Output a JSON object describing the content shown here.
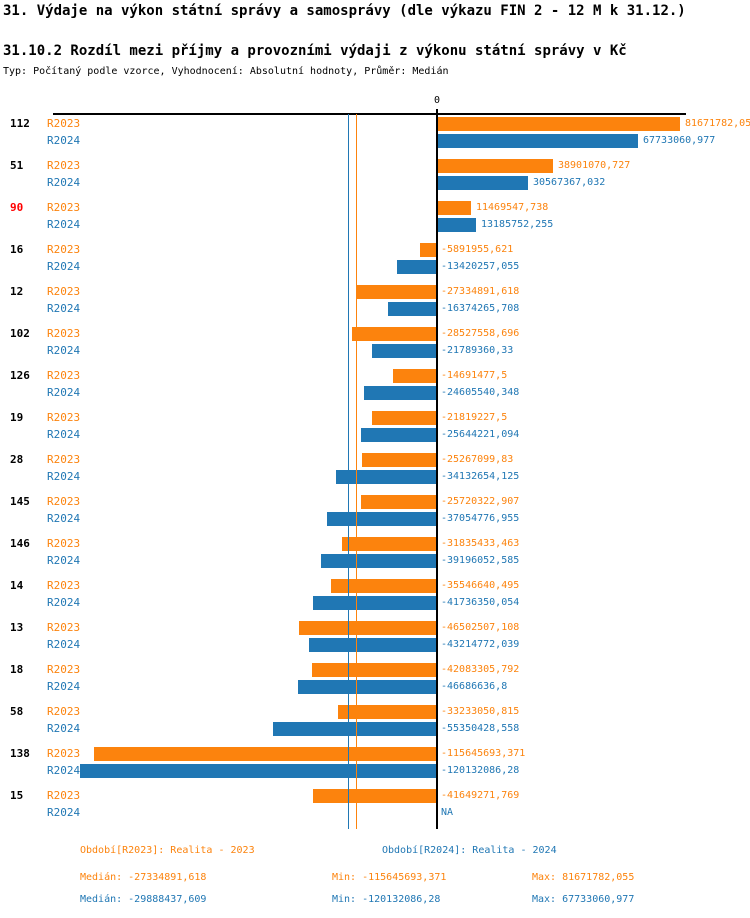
{
  "header": {
    "title": "31. Výdaje na výkon státní správy a samosprávy (dle výkazu FIN 2 - 12 M k 31.12.)",
    "subtitle": "31.10.2 Rozdíl mezi příjmy a provozními výdaji z výkonu státní správy v Kč",
    "meta": "Typ: Počítaný podle vzorce, Vyhodnocení: Absolutní hodnoty, Průměr: Medián"
  },
  "colors": {
    "r2023": "#FC830D",
    "r2024": "#2077B4",
    "category_default": "#000000",
    "category_highlight": "#FF0000",
    "axis": "#000000"
  },
  "axis": {
    "zero_label": "0"
  },
  "chart_data": {
    "type": "bar",
    "orientation": "horizontal",
    "unit": "Kč",
    "categories": [
      "112",
      "51",
      "90",
      "16",
      "12",
      "102",
      "126",
      "19",
      "28",
      "145",
      "146",
      "14",
      "13",
      "18",
      "58",
      "138",
      "15"
    ],
    "highlighted_categories": [
      "90"
    ],
    "series": [
      {
        "name": "R2023",
        "values": [
          81671782.05,
          38901070.727,
          11469547.738,
          -5891955.621,
          -27334891.618,
          -28527558.696,
          -14691477.5,
          -21819227.5,
          -25267099.83,
          -25720322.907,
          -31835433.463,
          -35546640.495,
          -46502507.108,
          -42083305.792,
          -33233050.815,
          -115645693.371,
          -41649271.769
        ],
        "labels": [
          "81671782,05",
          "38901070,727",
          "11469547,738",
          "-5891955,621",
          "-27334891,618",
          "-28527558,696",
          "-14691477,5",
          "-21819227,5",
          "-25267099,83",
          "-25720322,907",
          "-31835433,463",
          "-35546640,495",
          "-46502507,108",
          "-42083305,792",
          "-33233050,815",
          "-115645693,371",
          "-41649271,769"
        ],
        "median": -27334891.618
      },
      {
        "name": "R2024",
        "values": [
          67733060.977,
          30567367.032,
          13185752.255,
          -13420257.055,
          -16374265.708,
          -21789360.33,
          -24605540.348,
          -25644221.094,
          -34132654.125,
          -37054776.955,
          -39196052.585,
          -41736350.054,
          -43214772.039,
          -46686636.8,
          -55350428.558,
          -120132086.28,
          null
        ],
        "labels": [
          "67733060,977",
          "30567367,032",
          "13185752,255",
          "-13420257,055",
          "-16374265,708",
          "-21789360,33",
          "-24605540,348",
          "-25644221,094",
          "-34132654,125",
          "-37054776,955",
          "-39196052,585",
          "-41736350,054",
          "-43214772,039",
          "-46686636,8",
          "-55350428,558",
          "-120132086,28",
          "NA"
        ],
        "median": -29888437.609
      }
    ],
    "xlim": [
      -126000000,
      105000000
    ],
    "grid": false,
    "legend_position": "bottom"
  },
  "footer": {
    "period_2023": "Období[R2023]: Realita - 2023",
    "period_2024": "Období[R2024]: Realita - 2024",
    "stats_2023": {
      "median": "Medián: -27334891,618",
      "min": "Min: -115645693,371",
      "max": "Max: 81671782,055"
    },
    "stats_2024": {
      "median": "Medián: -29888437,609",
      "min": "Min: -120132086,28",
      "max": "Max: 67733060,977"
    }
  }
}
